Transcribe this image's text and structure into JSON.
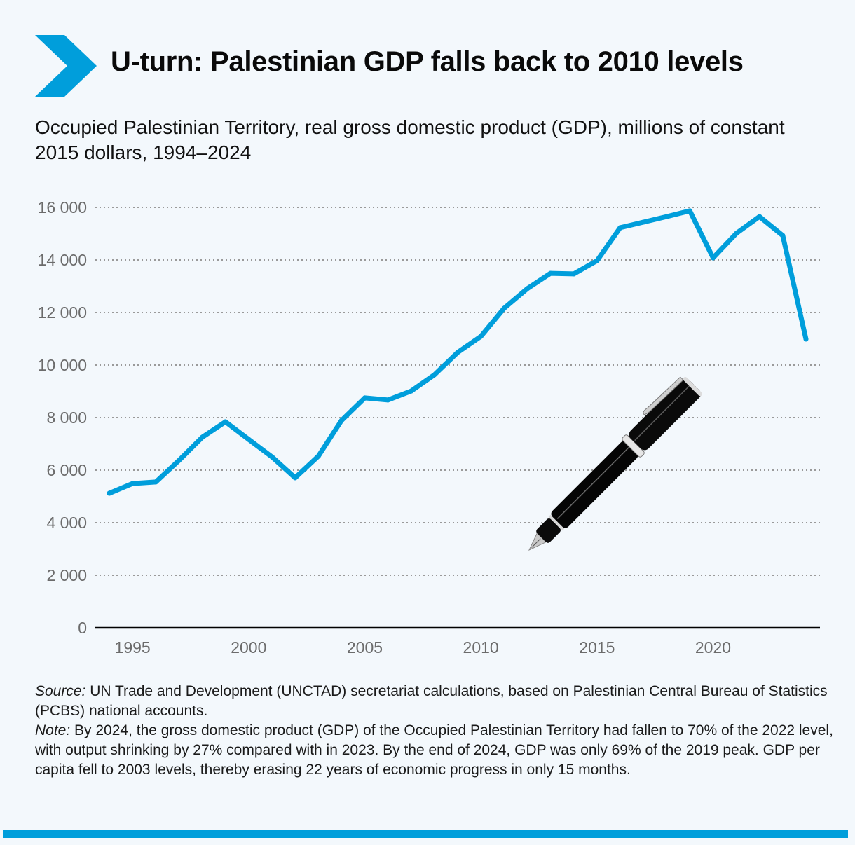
{
  "header": {
    "icon": "chevron-right-icon",
    "title": "U-turn: Palestinian GDP falls back to 2010 levels"
  },
  "subtitle": "Occupied Palestinian Territory, real gross domestic product (GDP), millions of constant 2015 dollars, 1994–2024",
  "colors": {
    "accent": "#009edb",
    "line": "#009edb",
    "background": "#f3f8fc",
    "grid": "#9a9a9a",
    "tick_text": "#6b6b6b"
  },
  "chart_data": {
    "type": "line",
    "title": "U-turn: Palestinian GDP falls back to 2010 levels",
    "subtitle": "Occupied Palestinian Territory, real gross domestic product (GDP), millions of constant 2015 dollars, 1994–2024",
    "xlabel": "",
    "ylabel": "",
    "x": [
      1994,
      1995,
      1996,
      1997,
      1998,
      1999,
      2000,
      2001,
      2002,
      2003,
      2004,
      2005,
      2006,
      2007,
      2008,
      2009,
      2010,
      2011,
      2012,
      2013,
      2014,
      2015,
      2016,
      2017,
      2018,
      2019,
      2020,
      2021,
      2022,
      2023,
      2024
    ],
    "series": [
      {
        "name": "Real GDP (millions of constant 2015 dollars)",
        "values": [
          5120,
          5490,
          5550,
          6370,
          7250,
          7840,
          7170,
          6510,
          5710,
          6530,
          7890,
          8750,
          8670,
          9010,
          9630,
          10480,
          11090,
          12160,
          12910,
          13490,
          13470,
          13970,
          15230,
          15440,
          15650,
          15870,
          14080,
          15010,
          15650,
          14930,
          10990
        ]
      }
    ],
    "xlim": [
      1994,
      2024
    ],
    "ylim": [
      0,
      16000
    ],
    "xticks": [
      1995,
      2000,
      2005,
      2010,
      2015,
      2020
    ],
    "xtick_labels": [
      "1995",
      "2000",
      "2005",
      "2010",
      "2015",
      "2020"
    ],
    "yticks": [
      0,
      2000,
      4000,
      6000,
      8000,
      10000,
      12000,
      14000,
      16000
    ],
    "ytick_labels": [
      "0",
      "2 000",
      "4 000",
      "6 000",
      "8 000",
      "10 000",
      "12 000",
      "14 000",
      "16 000"
    ],
    "grid": "horizontal dotted",
    "legend": "none",
    "decoration": "fountain-pen illustration"
  },
  "notes": {
    "source_label": "Source:",
    "source_text": " UN Trade and Development (UNCTAD) secretariat calculations, based on Palestinian Central Bureau of Statistics (PCBS) national accounts.",
    "note_label": "Note:",
    "note_text": " By 2024, the gross domestic product (GDP) of the Occupied Palestinian Territory had fallen to 70% of the 2022 level, with output shrinking by 27% compared with in 2023. By the end of 2024, GDP was only 69% of the 2019 peak. GDP per capita fell to 2003 levels, thereby erasing 22 years of economic progress in only 15 months."
  }
}
